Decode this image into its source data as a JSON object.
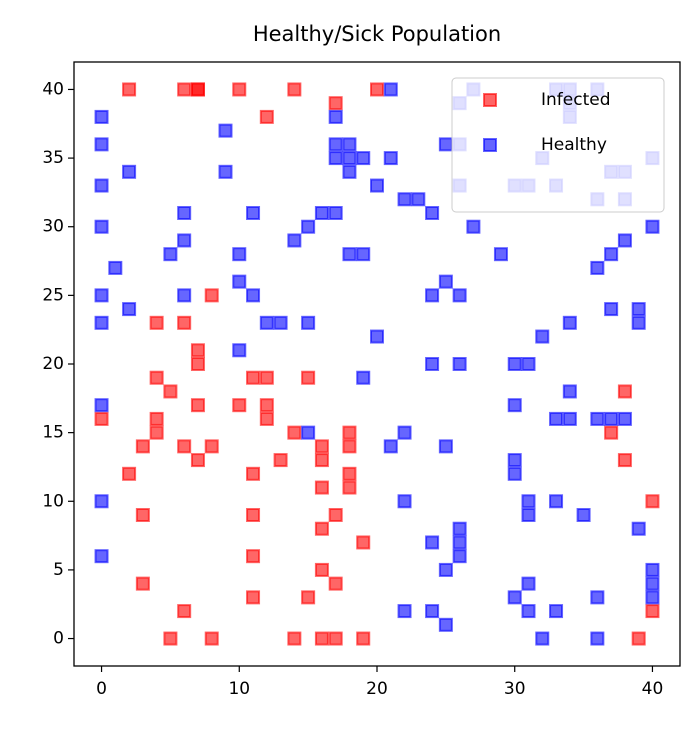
{
  "chart_data": {
    "type": "scatter",
    "title": "Healthy/Sick Population",
    "xlim": [
      -2,
      42
    ],
    "ylim": [
      -2,
      42
    ],
    "xticks": [
      0,
      10,
      20,
      30,
      40
    ],
    "yticks": [
      0,
      5,
      10,
      15,
      20,
      25,
      30,
      35,
      40
    ],
    "legend": "upper right",
    "series": [
      {
        "name": "Infected",
        "color": "#ff0000",
        "x": [
          2,
          6,
          7,
          7,
          10,
          14,
          20,
          17,
          12,
          8,
          4,
          6,
          7,
          7,
          4,
          5,
          11,
          12,
          15,
          38,
          0,
          4,
          4,
          3,
          6,
          7,
          8,
          7,
          10,
          12,
          12,
          14,
          16,
          16,
          18,
          18,
          13,
          2,
          11,
          18,
          18,
          16,
          38,
          37,
          40,
          3,
          11,
          17,
          16,
          19,
          11,
          16,
          17,
          3,
          11,
          15,
          6,
          40,
          5,
          8,
          14,
          16,
          17,
          19,
          39
        ],
        "values": [
          40,
          40,
          40,
          40,
          40,
          40,
          40,
          39,
          38,
          25,
          23,
          23,
          21,
          20,
          19,
          18,
          19,
          19,
          19,
          18,
          16,
          16,
          15,
          14,
          14,
          13,
          14,
          17,
          17,
          17,
          16,
          15,
          14,
          13,
          15,
          14,
          13,
          12,
          12,
          12,
          11,
          11,
          13,
          15,
          10,
          9,
          9,
          9,
          8,
          7,
          6,
          5,
          4,
          4,
          3,
          3,
          2,
          2,
          0,
          0,
          0,
          0,
          0,
          0,
          0
        ]
      },
      {
        "name": "Healthy",
        "color": "#0000ff",
        "x": [
          21,
          26,
          27,
          33,
          34,
          34,
          36,
          0,
          17,
          34,
          0,
          9,
          17,
          18,
          17,
          18,
          19,
          18,
          21,
          25,
          26,
          32,
          37,
          38,
          40,
          2,
          9,
          0,
          20,
          26,
          30,
          31,
          33,
          22,
          23,
          24,
          36,
          38,
          6,
          11,
          16,
          17,
          15,
          14,
          0,
          27,
          40,
          6,
          38,
          5,
          10,
          18,
          19,
          29,
          37,
          1,
          36,
          10,
          11,
          6,
          0,
          25,
          24,
          26,
          2,
          0,
          12,
          13,
          15,
          37,
          39,
          39,
          34,
          32,
          20,
          10,
          24,
          26,
          30,
          31,
          19,
          34,
          0,
          30,
          15,
          22,
          21,
          25,
          33,
          34,
          36,
          37,
          38,
          30,
          30,
          0,
          22,
          31,
          33,
          31,
          35,
          39,
          26,
          26,
          24,
          26,
          0,
          25,
          40,
          40,
          31,
          40,
          30,
          31,
          33,
          22,
          24,
          36,
          25,
          32,
          36
        ],
        "values": [
          40,
          39,
          40,
          40,
          40,
          39,
          40,
          38,
          38,
          38,
          36,
          37,
          36,
          36,
          35,
          35,
          35,
          34,
          35,
          36,
          36,
          35,
          34,
          34,
          35,
          34,
          34,
          33,
          33,
          33,
          33,
          33,
          33,
          32,
          32,
          31,
          32,
          32,
          31,
          31,
          31,
          31,
          30,
          29,
          30,
          30,
          30,
          29,
          29,
          28,
          28,
          28,
          28,
          28,
          28,
          27,
          27,
          26,
          25,
          25,
          25,
          26,
          25,
          25,
          24,
          23,
          23,
          23,
          23,
          24,
          24,
          23,
          23,
          22,
          22,
          21,
          20,
          20,
          20,
          20,
          19,
          18,
          17,
          17,
          15,
          15,
          14,
          14,
          16,
          16,
          16,
          16,
          16,
          13,
          12,
          10,
          10,
          10,
          10,
          9,
          9,
          8,
          8,
          7,
          7,
          6,
          6,
          5,
          5,
          4,
          4,
          3,
          3,
          2,
          2,
          2,
          2,
          3,
          1,
          0,
          0
        ]
      }
    ]
  }
}
